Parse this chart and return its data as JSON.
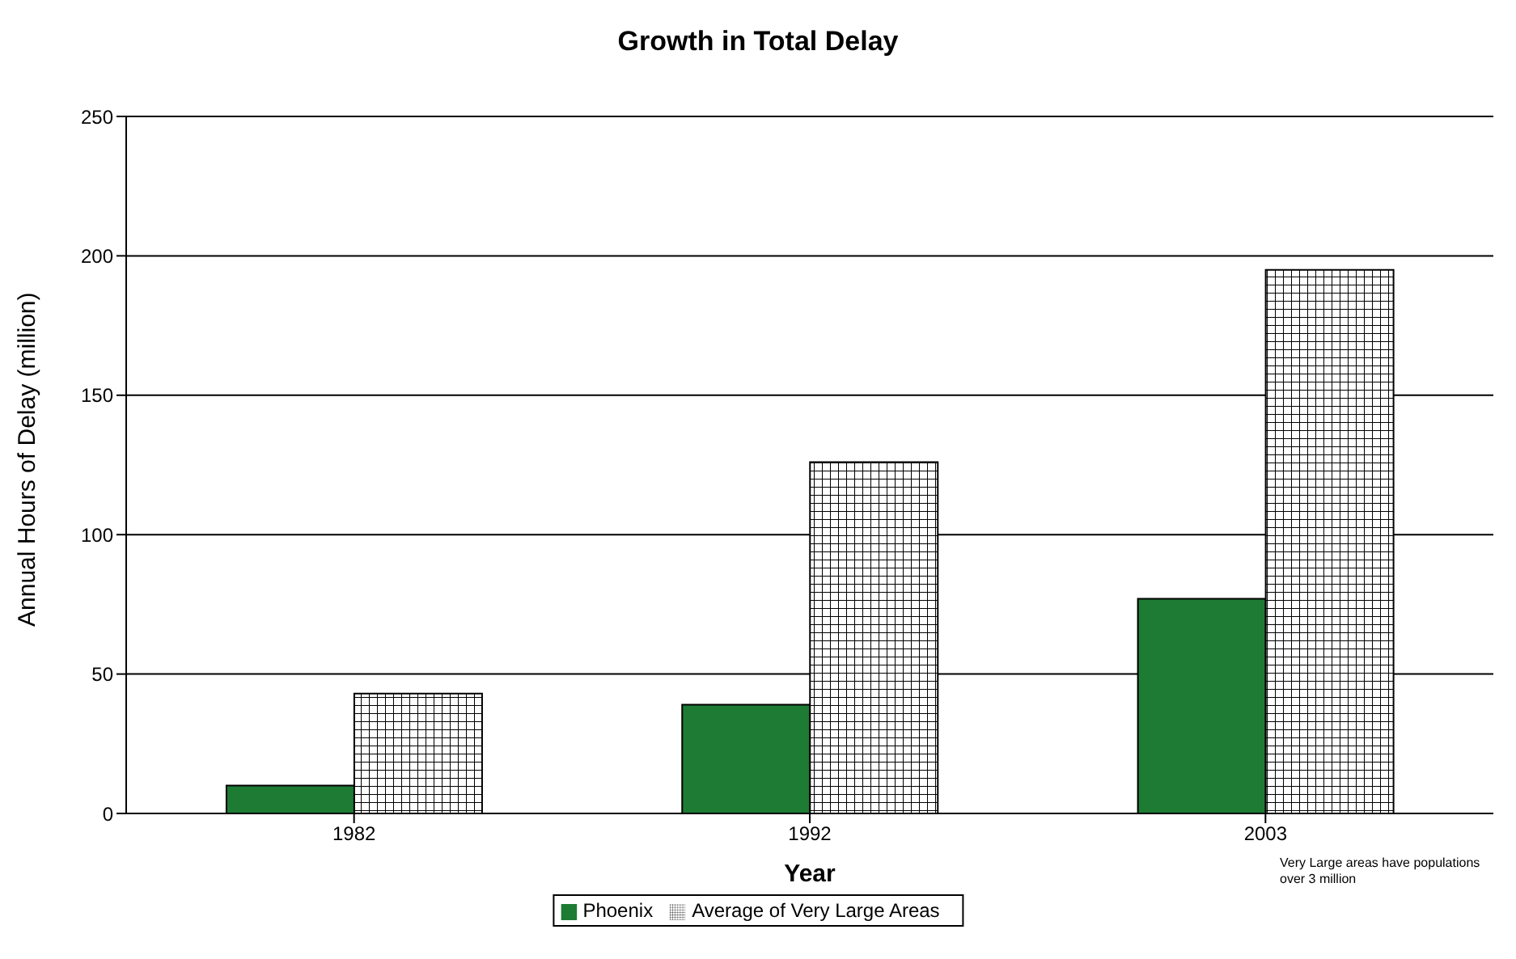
{
  "chart_data": {
    "type": "bar",
    "title": "Growth in Total Delay",
    "xlabel": "Year",
    "ylabel": "Annual Hours of Delay (million)",
    "categories": [
      "1982",
      "1992",
      "2003"
    ],
    "series": [
      {
        "name": "Phoenix",
        "color": "#1e7b34",
        "values": [
          10,
          39,
          77
        ]
      },
      {
        "name": "Average of Very Large Areas",
        "color": "#000000",
        "values": [
          43,
          126,
          195
        ]
      }
    ],
    "ylim": [
      0,
      250
    ],
    "yticks": [
      0,
      50,
      100,
      150,
      200,
      250
    ],
    "grid": "y",
    "legend": "bottom",
    "annotations": [
      "Very Large areas have populations over 3 million"
    ]
  }
}
